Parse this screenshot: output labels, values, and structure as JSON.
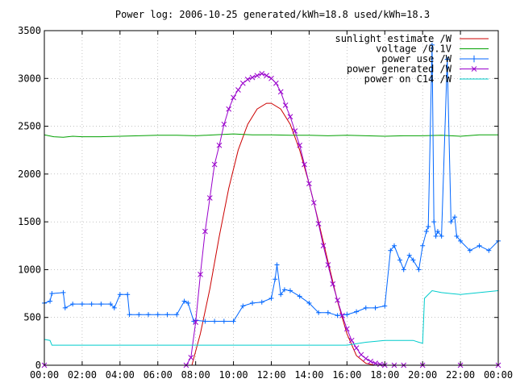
{
  "chart_data": {
    "type": "line",
    "title": "Power log: 2006-10-25 generated/kWh=18.8 used/kWh=18.3",
    "xlabel": "",
    "ylabel": "",
    "xlim": [
      0,
      24
    ],
    "ylim": [
      0,
      3500
    ],
    "grid": true,
    "legend_placement": "top-right",
    "x_tick_labels": [
      "00:00",
      "02:00",
      "04:00",
      "06:00",
      "08:00",
      "10:00",
      "12:00",
      "14:00",
      "16:00",
      "18:00",
      "20:00",
      "22:00",
      "00:00"
    ],
    "x_ticks": [
      0,
      2,
      4,
      6,
      8,
      10,
      12,
      14,
      16,
      18,
      20,
      22,
      24
    ],
    "y_ticks": [
      0,
      500,
      1000,
      1500,
      2000,
      2500,
      3000,
      3500
    ],
    "y_tick_labels": [
      "0",
      "500",
      "1000",
      "1500",
      "2000",
      "2500",
      "3000",
      "3500"
    ],
    "series": [
      {
        "name": "sunlight estimate /W",
        "color": "#cc0000",
        "marker": "none",
        "x": [
          7.8,
          8.25,
          8.75,
          9.25,
          9.75,
          10.25,
          10.75,
          11.25,
          11.75,
          12.0,
          12.5,
          13.0,
          13.5,
          14.0,
          14.5,
          15.0,
          15.5,
          16.0,
          16.5,
          17.0,
          17.5
        ],
        "y": [
          0,
          330,
          800,
          1350,
          1850,
          2250,
          2520,
          2680,
          2740,
          2740,
          2680,
          2520,
          2250,
          1900,
          1500,
          1080,
          670,
          330,
          100,
          20,
          0
        ]
      },
      {
        "name": "voltage /0.1V",
        "color": "#00a000",
        "marker": "none",
        "x": [
          0,
          0.5,
          1,
          1.5,
          2,
          3,
          4,
          5,
          6,
          7,
          8,
          9,
          10,
          11,
          12,
          13,
          14,
          15,
          16,
          17,
          18,
          19,
          20,
          21,
          22,
          23,
          24
        ],
        "y": [
          2410,
          2390,
          2385,
          2395,
          2390,
          2390,
          2395,
          2400,
          2405,
          2405,
          2400,
          2410,
          2420,
          2410,
          2410,
          2405,
          2405,
          2400,
          2405,
          2400,
          2395,
          2400,
          2400,
          2405,
          2395,
          2410,
          2410
        ]
      },
      {
        "name": "power use /W",
        "color": "#0066ff",
        "marker": "+",
        "x": [
          0,
          0.3,
          0.4,
          1.0,
          1.1,
          1.5,
          2.0,
          2.5,
          3.0,
          3.5,
          3.7,
          4.0,
          4.4,
          4.5,
          5.0,
          5.5,
          6.0,
          6.5,
          7.0,
          7.4,
          7.6,
          7.9,
          8.0,
          8.5,
          9.0,
          9.5,
          10.0,
          10.5,
          11.0,
          11.5,
          12.0,
          12.2,
          12.3,
          12.5,
          12.7,
          13.0,
          13.5,
          14.0,
          14.5,
          15.0,
          15.5,
          16.0,
          16.5,
          17.0,
          17.5,
          18.0,
          18.3,
          18.5,
          18.8,
          19.0,
          19.3,
          19.5,
          19.8,
          20.0,
          20.2,
          20.3,
          20.5,
          20.6,
          20.7,
          20.8,
          21.0,
          21.3,
          21.5,
          21.7,
          21.8,
          22.0,
          22.5,
          23.0,
          23.5,
          24.0
        ],
        "y": [
          650,
          670,
          750,
          760,
          600,
          640,
          640,
          640,
          640,
          640,
          600,
          740,
          740,
          530,
          530,
          530,
          530,
          530,
          530,
          670,
          650,
          460,
          470,
          460,
          460,
          460,
          460,
          620,
          650,
          660,
          700,
          900,
          1050,
          740,
          790,
          780,
          720,
          650,
          550,
          550,
          520,
          530,
          560,
          600,
          600,
          620,
          1200,
          1250,
          1100,
          1000,
          1150,
          1100,
          1000,
          1250,
          1400,
          1450,
          3350,
          1500,
          1350,
          1400,
          1350,
          3200,
          1500,
          1550,
          1350,
          1300,
          1200,
          1250,
          1200,
          1300
        ]
      },
      {
        "name": "power generated /W",
        "color": "#9900cc",
        "marker": "x",
        "x": [
          0,
          7.5,
          7.75,
          8.0,
          8.25,
          8.5,
          8.75,
          9.0,
          9.25,
          9.5,
          9.75,
          10.0,
          10.25,
          10.5,
          10.75,
          11.0,
          11.25,
          11.5,
          11.75,
          12.0,
          12.25,
          12.5,
          12.75,
          13.0,
          13.25,
          13.5,
          13.75,
          14.0,
          14.25,
          14.5,
          14.75,
          15.0,
          15.25,
          15.5,
          15.75,
          16.0,
          16.25,
          16.5,
          16.75,
          17.0,
          17.25,
          17.5,
          17.75,
          18.0,
          18.5,
          19.0,
          20.0,
          22.0,
          24.0
        ],
        "y": [
          0,
          0,
          80,
          450,
          950,
          1400,
          1750,
          2100,
          2300,
          2520,
          2680,
          2800,
          2880,
          2950,
          2990,
          3010,
          3030,
          3050,
          3030,
          3000,
          2950,
          2860,
          2720,
          2600,
          2450,
          2300,
          2100,
          1900,
          1700,
          1480,
          1250,
          1050,
          850,
          680,
          520,
          380,
          260,
          180,
          110,
          70,
          40,
          20,
          10,
          0,
          0,
          0,
          0,
          0,
          0
        ]
      },
      {
        "name": "power on C14 /W",
        "color": "#00cccc",
        "marker": "none",
        "x": [
          0,
          0.3,
          0.4,
          5.0,
          10.0,
          14.0,
          15.0,
          16.0,
          17.0,
          18.0,
          19.0,
          19.5,
          19.8,
          20.0,
          20.1,
          20.5,
          21.0,
          21.5,
          22.0,
          23.0,
          24.0
        ],
        "y": [
          270,
          260,
          210,
          210,
          210,
          210,
          210,
          210,
          240,
          260,
          260,
          260,
          240,
          230,
          700,
          780,
          760,
          750,
          740,
          760,
          780
        ]
      }
    ]
  }
}
